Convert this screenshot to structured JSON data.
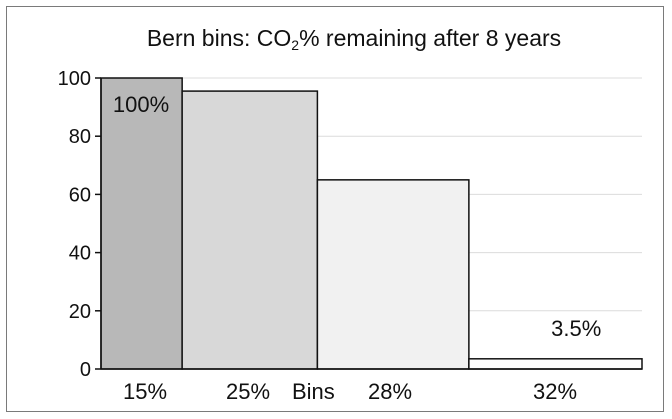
{
  "chart_data": {
    "type": "bar",
    "title_main": "Bern bins: CO",
    "title_sub": "2",
    "title_rest": "% remaining after 8 years",
    "xlabel": "Bins",
    "categories": [
      "15%",
      "25%",
      "28%",
      "32%"
    ],
    "bin_widths": [
      15,
      25,
      28,
      32
    ],
    "values": [
      100,
      95.5,
      65,
      3.5
    ],
    "data_labels": [
      "100%",
      "",
      "",
      "3.5%"
    ],
    "ylim": [
      0,
      100
    ],
    "yticks": [
      0,
      20,
      40,
      60,
      80,
      100
    ],
    "grid": true,
    "colors": [
      "#b8b8b8",
      "#d8d8d8",
      "#f1f1f1",
      "#ffffff"
    ]
  }
}
